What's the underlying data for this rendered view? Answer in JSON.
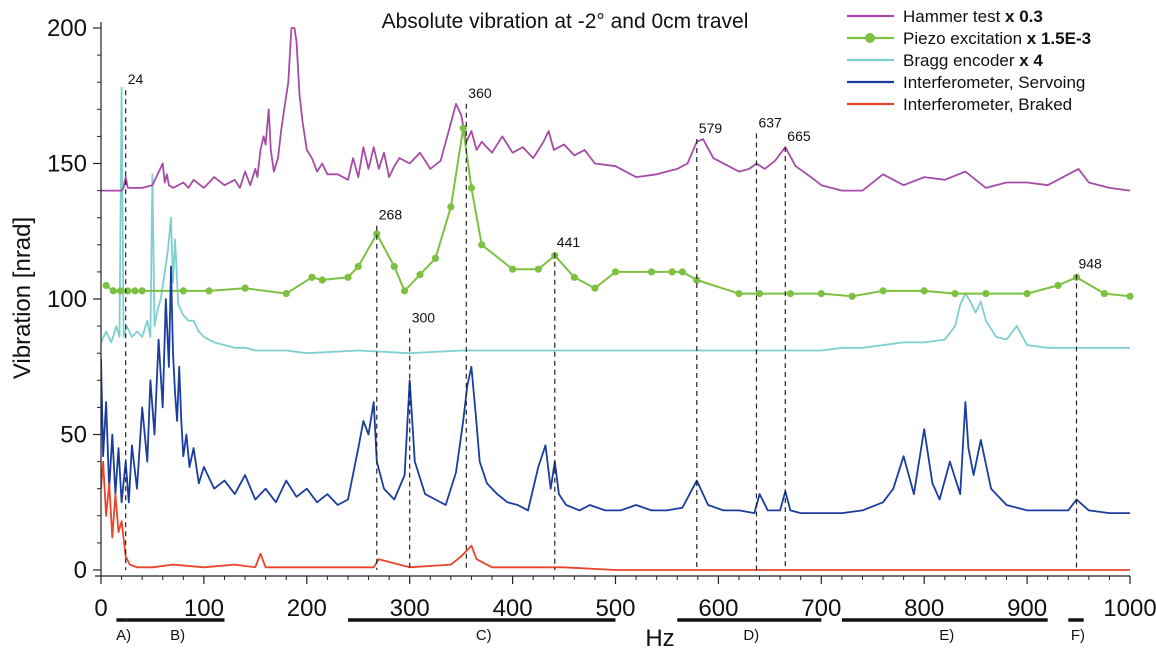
{
  "chart_data": {
    "type": "line",
    "title": "Absolute vibration at -2° and 0cm travel",
    "xlabel": "Hz",
    "ylabel": "Vibration [nrad]",
    "xlim": [
      0,
      1000
    ],
    "ylim": [
      0,
      200
    ],
    "x_ticks": [
      "0",
      "100",
      "200",
      "300",
      "400",
      "500",
      "600",
      "700",
      "800",
      "900",
      "1000"
    ],
    "y_ticks": [
      "0",
      "50",
      "100",
      "150",
      "200"
    ],
    "legend_position": "top-right",
    "series": [
      {
        "name": "Hammer test",
        "scale_label": "x 0.3",
        "color": "#a64ca6",
        "style": "line",
        "x": [
          0,
          20,
          22,
          24,
          26,
          30,
          40,
          50,
          60,
          62,
          64,
          66,
          70,
          80,
          85,
          90,
          100,
          110,
          120,
          130,
          135,
          140,
          145,
          150,
          152,
          155,
          158,
          160,
          163,
          165,
          168,
          172,
          175,
          178,
          182,
          185,
          188,
          190,
          193,
          196,
          200,
          205,
          210,
          215,
          220,
          230,
          240,
          245,
          250,
          255,
          260,
          265,
          270,
          275,
          280,
          285,
          290,
          300,
          310,
          320,
          330,
          340,
          345,
          350,
          355,
          360,
          365,
          370,
          380,
          390,
          400,
          410,
          420,
          430,
          435,
          440,
          450,
          460,
          470,
          480,
          500,
          520,
          540,
          560,
          570,
          579,
          585,
          595,
          610,
          620,
          630,
          637,
          645,
          655,
          665,
          675,
          690,
          700,
          720,
          740,
          760,
          780,
          800,
          820,
          840,
          860,
          880,
          900,
          920,
          940,
          950,
          960,
          980,
          1000
        ],
        "y": [
          140,
          140,
          141,
          145,
          141,
          141,
          141,
          142,
          150,
          143,
          146,
          142,
          141,
          143,
          141,
          144,
          141,
          145,
          142,
          144,
          141,
          147,
          142,
          148,
          145,
          155,
          160,
          157,
          170,
          155,
          147,
          152,
          162,
          170,
          180,
          200,
          200,
          195,
          175,
          165,
          155,
          152,
          147,
          150,
          146,
          146,
          144,
          152,
          145,
          156,
          148,
          156,
          148,
          154,
          145,
          149,
          152,
          150,
          154,
          148,
          151,
          165,
          172,
          168,
          158,
          162,
          155,
          158,
          154,
          160,
          154,
          156,
          152,
          158,
          162,
          155,
          157,
          153,
          155,
          150,
          149,
          145,
          146,
          148,
          150,
          158,
          159,
          152,
          149,
          147,
          148,
          150,
          148,
          151,
          156,
          149,
          145,
          142,
          140,
          140,
          146,
          142,
          145,
          144,
          147,
          141,
          143,
          143,
          142,
          146,
          148,
          143,
          141,
          140
        ]
      },
      {
        "name": "Piezo excitation",
        "scale_label": "x 1.5E-3",
        "color": "#7dc142",
        "style": "line-marker",
        "x": [
          5,
          12,
          19,
          26,
          33,
          40,
          80,
          105,
          140,
          180,
          205,
          215,
          240,
          250,
          268,
          285,
          295,
          310,
          325,
          340,
          352,
          360,
          370,
          400,
          425,
          441,
          460,
          480,
          500,
          535,
          555,
          565,
          579,
          620,
          640,
          670,
          700,
          730,
          760,
          800,
          830,
          860,
          900,
          930,
          948,
          975,
          1000
        ],
        "y": [
          105,
          103,
          103,
          103,
          103,
          103,
          103,
          103,
          104,
          102,
          108,
          107,
          108,
          112,
          124,
          112,
          103,
          109,
          115,
          134,
          163,
          141,
          120,
          111,
          111,
          116,
          108,
          104,
          110,
          110,
          110,
          110,
          107,
          102,
          102,
          102,
          102,
          101,
          103,
          103,
          102,
          102,
          102,
          105,
          108,
          102,
          101
        ]
      },
      {
        "name": "Bragg encoder",
        "scale_label": "x 4",
        "color": "#7fcfcf",
        "style": "line",
        "x": [
          0,
          5,
          10,
          15,
          18,
          20,
          22,
          25,
          30,
          35,
          40,
          45,
          48,
          50,
          52,
          55,
          58,
          62,
          65,
          68,
          70,
          72,
          75,
          80,
          85,
          90,
          95,
          100,
          110,
          120,
          130,
          140,
          150,
          160,
          180,
          200,
          250,
          300,
          350,
          400,
          450,
          500,
          550,
          600,
          650,
          700,
          720,
          740,
          760,
          780,
          800,
          820,
          830,
          835,
          840,
          845,
          850,
          855,
          860,
          870,
          880,
          890,
          900,
          920,
          950,
          1000
        ],
        "y": [
          84,
          88,
          84,
          90,
          86,
          178,
          86,
          90,
          86,
          88,
          86,
          92,
          86,
          146,
          90,
          96,
          100,
          110,
          118,
          130,
          106,
          122,
          98,
          94,
          92,
          92,
          88,
          86,
          84,
          83,
          82,
          82,
          81,
          81,
          81,
          80,
          81,
          80,
          81,
          81,
          81,
          81,
          81,
          81,
          81,
          81,
          82,
          82,
          83,
          84,
          84,
          85,
          90,
          98,
          102,
          99,
          95,
          99,
          92,
          86,
          85,
          90,
          83,
          82,
          82,
          82
        ]
      },
      {
        "name": "Interferometer, Servoing",
        "scale_label": "",
        "color": "#1a3d9e",
        "style": "line",
        "x": [
          0,
          2,
          5,
          8,
          11,
          14,
          17,
          20,
          24,
          27,
          30,
          35,
          40,
          45,
          48,
          52,
          56,
          60,
          63,
          66,
          68,
          70,
          72,
          74,
          76,
          78,
          80,
          83,
          86,
          90,
          95,
          100,
          110,
          120,
          130,
          140,
          150,
          160,
          170,
          180,
          190,
          200,
          210,
          220,
          230,
          240,
          250,
          255,
          260,
          265,
          268,
          275,
          285,
          295,
          300,
          305,
          315,
          325,
          335,
          345,
          352,
          356,
          360,
          364,
          368,
          375,
          385,
          395,
          405,
          415,
          425,
          432,
          437,
          441,
          445,
          452,
          465,
          475,
          490,
          505,
          520,
          535,
          550,
          565,
          579,
          590,
          605,
          620,
          635,
          640,
          648,
          660,
          665,
          670,
          680,
          700,
          720,
          740,
          760,
          770,
          780,
          790,
          800,
          808,
          815,
          825,
          835,
          840,
          843,
          848,
          855,
          865,
          880,
          900,
          920,
          940,
          948,
          960,
          980,
          1000
        ],
        "y": [
          78,
          42,
          62,
          30,
          50,
          28,
          45,
          25,
          40,
          25,
          46,
          30,
          60,
          40,
          70,
          50,
          85,
          60,
          100,
          75,
          112,
          80,
          65,
          55,
          75,
          55,
          42,
          50,
          38,
          45,
          32,
          38,
          30,
          33,
          28,
          35,
          26,
          30,
          25,
          33,
          27,
          30,
          25,
          28,
          24,
          26,
          45,
          55,
          50,
          62,
          40,
          30,
          26,
          35,
          70,
          40,
          28,
          26,
          24,
          36,
          55,
          68,
          75,
          58,
          40,
          32,
          28,
          25,
          24,
          22,
          38,
          46,
          30,
          40,
          28,
          24,
          22,
          24,
          22,
          22,
          24,
          22,
          22,
          23,
          33,
          24,
          22,
          22,
          21,
          28,
          22,
          22,
          29,
          22,
          21,
          21,
          21,
          22,
          25,
          30,
          42,
          28,
          52,
          32,
          26,
          40,
          28,
          62,
          45,
          35,
          48,
          30,
          24,
          22,
          22,
          22,
          26,
          22,
          21,
          21
        ]
      },
      {
        "name": "Interferometer, Braked",
        "scale_label": "",
        "color": "#e8452a",
        "style": "line",
        "x": [
          0,
          2,
          5,
          8,
          11,
          14,
          17,
          20,
          24,
          28,
          35,
          50,
          70,
          100,
          130,
          150,
          155,
          160,
          200,
          240,
          265,
          270,
          300,
          340,
          350,
          355,
          360,
          365,
          380,
          400,
          450,
          500,
          600,
          700,
          800,
          900,
          1000
        ],
        "y": [
          30,
          40,
          20,
          32,
          12,
          28,
          14,
          18,
          5,
          2,
          1,
          1,
          2,
          1,
          2,
          1,
          6,
          1,
          1,
          1,
          1,
          4,
          1,
          2,
          5,
          7,
          9,
          4,
          1,
          1,
          1,
          0,
          0,
          0,
          0,
          0,
          0
        ]
      }
    ],
    "annotations": [
      {
        "label": "24",
        "x": 24,
        "y_top": 180
      },
      {
        "label": "268",
        "x": 268,
        "y_top": 130
      },
      {
        "label": "300",
        "x": 300,
        "y_top": 92
      },
      {
        "label": "360",
        "x": 355,
        "y_top": 175
      },
      {
        "label": "441",
        "x": 441,
        "y_top": 120
      },
      {
        "label": "579",
        "x": 579,
        "y_top": 162
      },
      {
        "label": "637",
        "x": 637,
        "y_top": 164
      },
      {
        "label": "665",
        "x": 665,
        "y_top": 159
      },
      {
        "label": "948",
        "x": 948,
        "y_top": 112
      }
    ],
    "ranges": [
      {
        "label": "A)",
        "from": 15,
        "to": 25
      },
      {
        "label": "B)",
        "from": 25,
        "to": 120
      },
      {
        "label": "C)",
        "from": 240,
        "to": 500
      },
      {
        "label": "D)",
        "from": 560,
        "to": 700
      },
      {
        "label": "E)",
        "from": 720,
        "to": 920
      },
      {
        "label": "F)",
        "from": 940,
        "to": 955
      }
    ]
  }
}
